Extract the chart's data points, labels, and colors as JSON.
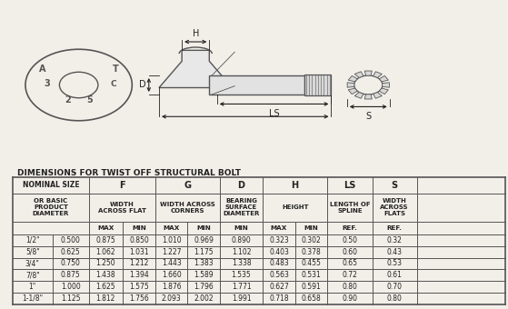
{
  "title": "DIMENSIONS FOR TWIST OFF STRUCTURAL BOLT",
  "background_color": "#f2efe9",
  "rows": [
    [
      "1/2\"",
      "0.500",
      "0.875",
      "0.850",
      "1.010",
      "0.969",
      "0.890",
      "0.323",
      "0.302",
      "0.50",
      "0.32"
    ],
    [
      "5/8\"",
      "0.625",
      "1.062",
      "1.031",
      "1.227",
      "1.175",
      "1.102",
      "0.403",
      "0.378",
      "0.60",
      "0.43"
    ],
    [
      "3/4\"",
      "0.750",
      "1.250",
      "1.212",
      "1.443",
      "1.383",
      "1.338",
      "0.483",
      "0.455",
      "0.65",
      "0.53"
    ],
    [
      "7/8\"",
      "0.875",
      "1.438",
      "1.394",
      "1.660",
      "1.589",
      "1.535",
      "0.563",
      "0.531",
      "0.72",
      "0.61"
    ],
    [
      "1\"",
      "1.000",
      "1.625",
      "1.575",
      "1.876",
      "1.796",
      "1.771",
      "0.627",
      "0.591",
      "0.80",
      "0.70"
    ],
    [
      "1-1/8\"",
      "1.125",
      "1.812",
      "1.756",
      "2.093",
      "2.002",
      "1.991",
      "0.718",
      "0.658",
      "0.90",
      "0.80"
    ]
  ],
  "line_color": "#555555",
  "text_color": "#222222"
}
